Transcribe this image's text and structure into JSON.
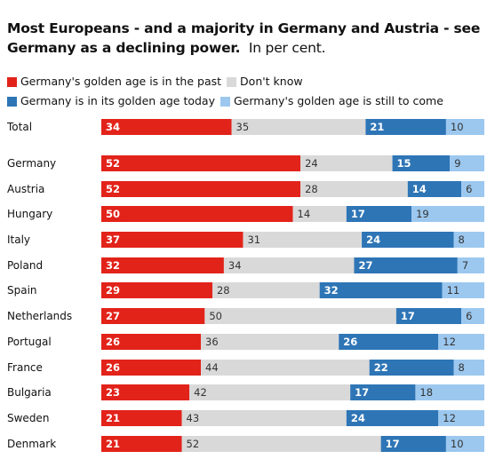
{
  "title": {
    "main": "Most Europeans - and a majority in Germany and Austria - see Germany as a declining power.",
    "sub": "In per cent."
  },
  "colors": {
    "past": "#e2231a",
    "dontknow": "#d9d9d9",
    "today": "#2e75b6",
    "tocome": "#9cc8ef"
  },
  "chart_data": {
    "type": "bar",
    "stacked": true,
    "orientation": "horizontal",
    "title": "Most Europeans - and a majority in Germany and Austria - see Germany as a declining power.",
    "subtitle": "In per cent.",
    "categories": [
      "Total",
      "Germany",
      "Austria",
      "Hungary",
      "Italy",
      "Poland",
      "Spain",
      "Netherlands",
      "Portugal",
      "France",
      "Bulgaria",
      "Sweden",
      "Denmark"
    ],
    "series": [
      {
        "name": "Germany's golden age is in the past",
        "color": "#e2231a",
        "values": [
          34,
          52,
          52,
          50,
          37,
          32,
          29,
          27,
          26,
          26,
          23,
          21,
          21
        ]
      },
      {
        "name": "Don't know",
        "color": "#d9d9d9",
        "values": [
          35,
          24,
          28,
          14,
          31,
          34,
          28,
          50,
          36,
          44,
          42,
          43,
          52
        ]
      },
      {
        "name": "Germany is in its golden age today",
        "color": "#2e75b6",
        "values": [
          21,
          15,
          14,
          17,
          24,
          27,
          32,
          17,
          26,
          22,
          17,
          24,
          17
        ]
      },
      {
        "name": "Germany's golden age is still to come",
        "color": "#9cc8ef",
        "values": [
          10,
          9,
          6,
          19,
          8,
          7,
          11,
          6,
          12,
          8,
          18,
          12,
          10
        ]
      }
    ],
    "legend_position": "top",
    "grid": false
  }
}
